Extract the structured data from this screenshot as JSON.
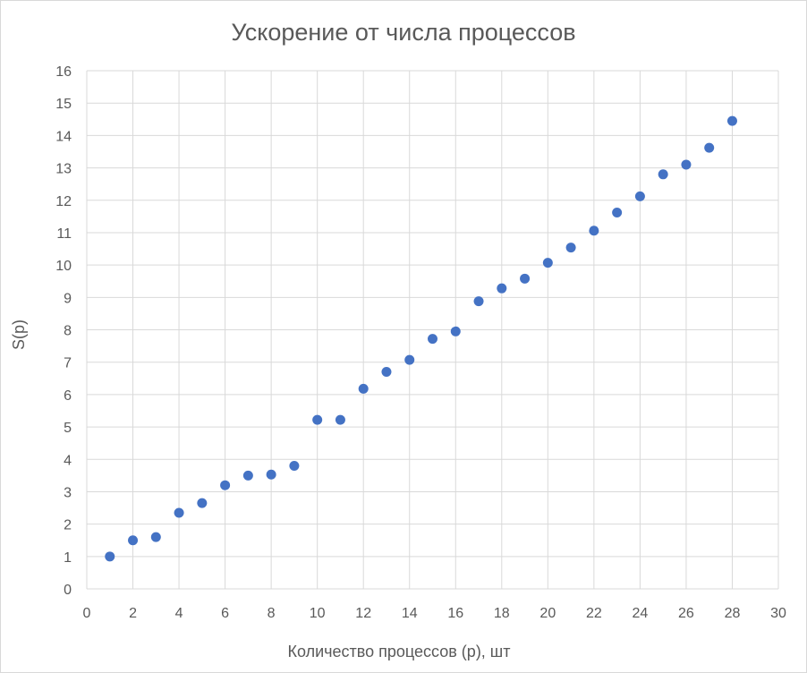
{
  "chart_data": {
    "type": "scatter",
    "title": "Ускорение от числа процессов",
    "xlabel": "Количество процессов (p), шт",
    "ylabel": "S(p)",
    "xlim": [
      0,
      30
    ],
    "ylim": [
      0,
      16
    ],
    "x_ticks": [
      0,
      2,
      4,
      6,
      8,
      10,
      12,
      14,
      16,
      18,
      20,
      22,
      24,
      26,
      28,
      30
    ],
    "y_ticks": [
      0,
      1,
      2,
      3,
      4,
      5,
      6,
      7,
      8,
      9,
      10,
      11,
      12,
      13,
      14,
      15,
      16
    ],
    "grid": true,
    "legend": "none",
    "color": "#4472C4",
    "series": [
      {
        "x": [
          1,
          2,
          3,
          4,
          5,
          6,
          7,
          8,
          9,
          10,
          11,
          12,
          13,
          14,
          15,
          16,
          17,
          18,
          19,
          20,
          21,
          22,
          23,
          24,
          25,
          26,
          27,
          28
        ],
        "y": [
          1.0,
          1.5,
          1.6,
          2.35,
          2.65,
          3.2,
          3.5,
          3.53,
          3.8,
          5.22,
          5.22,
          6.18,
          6.7,
          7.07,
          7.72,
          7.95,
          8.88,
          9.28,
          9.58,
          10.07,
          10.54,
          11.06,
          11.62,
          12.12,
          12.8,
          13.1,
          13.62,
          14.45
        ]
      }
    ]
  }
}
